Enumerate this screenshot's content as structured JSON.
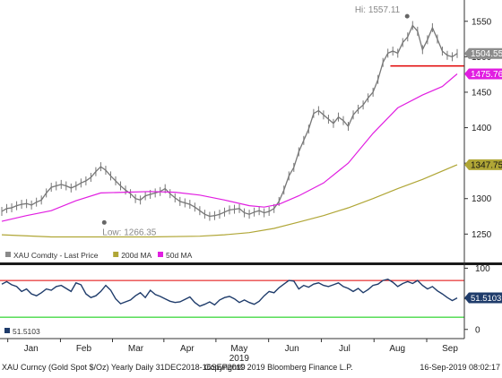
{
  "chart_data": [
    {
      "type": "line",
      "title": "",
      "ylim": [
        1210,
        1580
      ],
      "ticks": [
        1250,
        1300,
        1350,
        1400,
        1450,
        1500,
        1550
      ],
      "grid": false,
      "legend_placement": "bottom-left",
      "legend": [
        {
          "label": "XAU Comdty - Last Price",
          "color": "#8a8a8a"
        },
        {
          "label": "200d MA",
          "color": "#b0a636"
        },
        {
          "label": "50d MA",
          "color": "#e11ee1"
        }
      ],
      "annotations": {
        "high": {
          "text": "Hi: 1557.11",
          "x": 81.9,
          "y": 1557.11
        },
        "low": {
          "text": "Low: 1266.35",
          "x": 20.7,
          "y": 1266.35
        },
        "support_line": {
          "y": 1487,
          "color": "#e00000",
          "from_x": 78.5
        },
        "last_price_label": {
          "text": "1504.55",
          "value": 1504.55,
          "color": "#8c8c8c"
        },
        "ma50_label": {
          "text": "1475.76",
          "value": 1475.76,
          "color": "#e11ee1"
        },
        "ma200_label": {
          "text": "1347.75",
          "value": 1347.75,
          "color": "#b0a636"
        }
      },
      "series": [
        {
          "name": "XAU Comdty - Last Price",
          "color": "#777777",
          "x": [
            0,
            1,
            2,
            3,
            4,
            5,
            6,
            7,
            8,
            9,
            10,
            11,
            12,
            13,
            14,
            15,
            16,
            17,
            18,
            19,
            20,
            21,
            22,
            23,
            24,
            25,
            26,
            27,
            28,
            29,
            30,
            31,
            32,
            33,
            34,
            35,
            36,
            37,
            38,
            39,
            40,
            41,
            42,
            43,
            44,
            45,
            46,
            47,
            48,
            49,
            50,
            51,
            52,
            53,
            54,
            55,
            56,
            57,
            58,
            59,
            60,
            61,
            62,
            63,
            64,
            65,
            66,
            67,
            68,
            69,
            70,
            71,
            72,
            73,
            74,
            75,
            76,
            77,
            78,
            79,
            80,
            81,
            82,
            83,
            84,
            85,
            86,
            87,
            88,
            89,
            90,
            91,
            92
          ],
          "values": [
            1282,
            1286,
            1287,
            1290,
            1292,
            1293,
            1291,
            1295,
            1298,
            1308,
            1316,
            1318,
            1320,
            1318,
            1315,
            1318,
            1322,
            1325,
            1330,
            1338,
            1345,
            1340,
            1332,
            1325,
            1318,
            1312,
            1307,
            1300,
            1298,
            1304,
            1306,
            1308,
            1310,
            1314,
            1307,
            1301,
            1296,
            1294,
            1292,
            1288,
            1283,
            1278,
            1275,
            1276,
            1278,
            1281,
            1284,
            1285,
            1286,
            1280,
            1278,
            1281,
            1283,
            1280,
            1282,
            1286,
            1296,
            1312,
            1332,
            1344,
            1366,
            1382,
            1398,
            1420,
            1424,
            1418,
            1412,
            1406,
            1415,
            1410,
            1402,
            1418,
            1426,
            1432,
            1442,
            1450,
            1468,
            1492,
            1505,
            1508,
            1505,
            1520,
            1528,
            1544,
            1536,
            1510,
            1524,
            1541,
            1525,
            1508,
            1502,
            1500,
            1504.55
          ]
        },
        {
          "name": "200d MA",
          "color": "#b0a636",
          "x": [
            0,
            10,
            20,
            30,
            40,
            45,
            50,
            55,
            60,
            65,
            70,
            75,
            80,
            85,
            92
          ],
          "values": [
            1249,
            1246,
            1246,
            1246,
            1247,
            1249,
            1252,
            1258,
            1267,
            1276,
            1287,
            1300,
            1314,
            1327,
            1347.75
          ]
        },
        {
          "name": "50d MA",
          "color": "#e11ee1",
          "x": [
            0,
            5,
            10,
            15,
            20,
            25,
            30,
            35,
            40,
            45,
            50,
            53,
            56,
            60,
            65,
            70,
            75,
            80,
            85,
            89,
            92
          ],
          "values": [
            1268,
            1276,
            1283,
            1297,
            1308,
            1309,
            1310,
            1309,
            1305,
            1298,
            1290,
            1288,
            1292,
            1304,
            1322,
            1350,
            1392,
            1428,
            1446,
            1458,
            1475.76
          ]
        }
      ],
      "month_labels": [
        {
          "text": "Jan",
          "x": 4.5
        },
        {
          "text": "Feb",
          "x": 12.6
        },
        {
          "text": "Mar",
          "x": 20.6
        },
        {
          "text": "Apr",
          "x": 28.5
        },
        {
          "text": "May",
          "x": 36.5
        },
        {
          "text": "Jun",
          "x": 44.6
        },
        {
          "text": "Jul",
          "x": 52.7
        },
        {
          "text": "Aug",
          "x": 60.8
        },
        {
          "text": "Sep",
          "x": 68.9
        }
      ],
      "year_label": "2019"
    },
    {
      "type": "line",
      "title": "",
      "ylim": [
        -15,
        105
      ],
      "ticks": [
        0,
        50,
        100
      ],
      "overbought": {
        "value": 80,
        "color": "#e00000"
      },
      "oversold": {
        "value": 20,
        "color": "#00cc00"
      },
      "legend": [
        {
          "label": "51.5103",
          "color": "#1f3c6b"
        }
      ],
      "series": [
        {
          "name": "51.5103",
          "color": "#1f3c6b",
          "x": [
            0,
            1,
            2,
            3,
            4,
            5,
            6,
            7,
            8,
            9,
            10,
            11,
            12,
            13,
            14,
            15,
            16,
            17,
            18,
            19,
            20,
            21,
            22,
            23,
            24,
            25,
            26,
            27,
            28,
            29,
            30,
            31,
            32,
            33,
            34,
            35,
            36,
            37,
            38,
            39,
            40,
            41,
            42,
            43,
            44,
            45,
            46,
            47,
            48,
            49,
            50,
            51,
            52,
            53,
            54,
            55,
            56,
            57,
            58,
            59,
            60,
            61,
            62,
            63,
            64,
            65,
            66,
            67,
            68,
            69,
            70,
            71,
            72,
            73,
            74,
            75,
            76,
            77,
            78,
            79,
            80,
            81,
            82,
            83,
            84,
            85,
            86,
            87,
            88,
            89,
            90,
            91,
            92
          ],
          "values": [
            74,
            78,
            73,
            70,
            62,
            66,
            58,
            55,
            60,
            66,
            64,
            70,
            72,
            67,
            62,
            76,
            73,
            58,
            52,
            55,
            62,
            72,
            64,
            50,
            42,
            45,
            48,
            55,
            60,
            52,
            64,
            57,
            54,
            50,
            46,
            44,
            45,
            49,
            53,
            44,
            38,
            41,
            45,
            40,
            48,
            52,
            54,
            50,
            44,
            48,
            44,
            41,
            46,
            55,
            62,
            60,
            68,
            74,
            80,
            79,
            66,
            72,
            69,
            74,
            76,
            72,
            70,
            73,
            76,
            70,
            67,
            62,
            67,
            60,
            65,
            72,
            74,
            80,
            82,
            77,
            70,
            75,
            78,
            75,
            80,
            72,
            66,
            70,
            63,
            58,
            52,
            47,
            51.5103
          ]
        }
      ],
      "last_value_label": "51.5103"
    }
  ],
  "footer": {
    "left": "XAU Curncy (Gold Spot  $/Oz) Yearly  Daily 31DEC2018-16SEP2019",
    "center": "Copyright© 2019 Bloomberg Finance L.P.",
    "right": "16-Sep-2019 08:02:17"
  },
  "colors": {
    "axis": "#333333",
    "divider": "#1a1a1a",
    "price": "#7a7a7a"
  }
}
